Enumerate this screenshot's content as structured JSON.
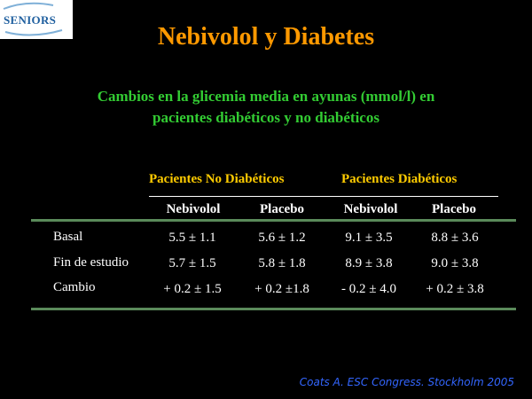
{
  "logo": {
    "text": "SENIORS"
  },
  "title": "Nebivolol y Diabetes",
  "subtitle": {
    "line1": "Cambios en la glicemia media en ayunas (mmol/l) en",
    "line2": "pacientes diabéticos y no diabéticos"
  },
  "table": {
    "groups": [
      "Pacientes No Diabéticos",
      "Pacientes Diabéticos"
    ],
    "columns": [
      "Nebivolol",
      "Placebo",
      "Nebivolol",
      "Placebo"
    ],
    "rows": [
      {
        "label": "Basal",
        "cells": [
          "5.5 ± 1.1",
          "5.6 ± 1.2",
          "9.1 ± 3.5",
          "8.8 ± 3.6"
        ]
      },
      {
        "label": "Fin de estudio",
        "cells": [
          "5.7 ± 1.5",
          "5.8 ± 1.8",
          "8.9 ± 3.8",
          "9.0 ± 3.8"
        ]
      },
      {
        "label": "Cambio",
        "cells": [
          "+ 0.2 ± 1.5",
          "+ 0.2 ±1.8",
          "- 0.2 ± 4.0",
          "+ 0.2 ± 3.8"
        ]
      }
    ]
  },
  "footer": "Coats A. ESC Congress. Stockholm 2005",
  "colors": {
    "title": "#ff9900",
    "subtitle": "#33cc33",
    "group_header": "#ffcc00",
    "rule": "#5a8a5a",
    "footer": "#3366ff"
  }
}
